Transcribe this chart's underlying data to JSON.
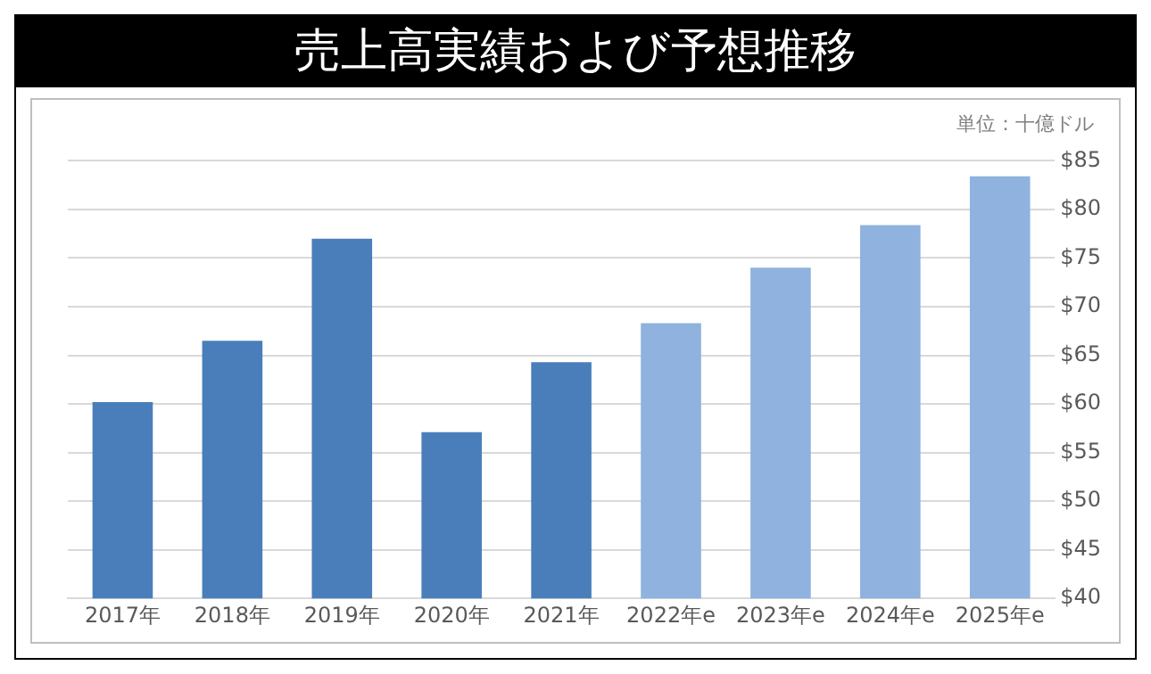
{
  "chart_data": {
    "type": "bar",
    "title": "売上高実績および予想推移",
    "annotations": [
      "単位：十億ドル"
    ],
    "categories": [
      "2017年",
      "2018年",
      "2019年",
      "2020年",
      "2021年",
      "2022年e",
      "2023年e",
      "2024年e",
      "2025年e"
    ],
    "values": [
      60.2,
      66.5,
      77.0,
      57.1,
      64.3,
      68.3,
      74.0,
      78.4,
      83.4
    ],
    "colors": [
      "#4a7ebb",
      "#4a7ebb",
      "#4a7ebb",
      "#4a7ebb",
      "#4a7ebb",
      "#8fb2de",
      "#8fb2de",
      "#8fb2de",
      "#8fb2de"
    ],
    "ylim": [
      40,
      85
    ],
    "yticks": [
      {
        "value": 40,
        "label": "$40"
      },
      {
        "value": 45,
        "label": "$45"
      },
      {
        "value": 50,
        "label": "$50"
      },
      {
        "value": 55,
        "label": "$55"
      },
      {
        "value": 60,
        "label": "$60"
      },
      {
        "value": 65,
        "label": "$65"
      },
      {
        "value": 70,
        "label": "$70"
      },
      {
        "value": 75,
        "label": "$75"
      },
      {
        "value": 80,
        "label": "$80"
      },
      {
        "value": 85,
        "label": "$85"
      }
    ],
    "grid": "y",
    "legend": false
  }
}
